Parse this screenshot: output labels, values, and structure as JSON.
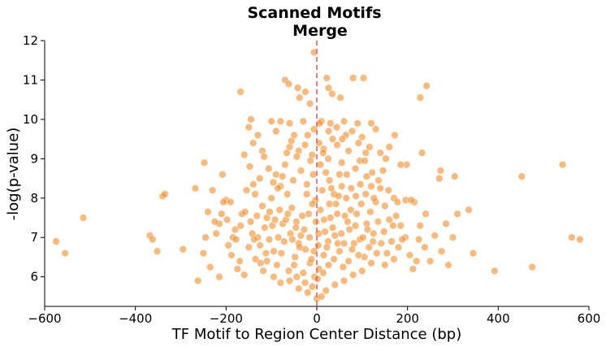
{
  "chart_data": {
    "type": "scatter",
    "title": "Scanned Motifs",
    "subtitle": "Merge",
    "xlabel": "TF Motif to Region Center Distance (bp)",
    "ylabel": "-log(p-value)",
    "xlim": [
      -600,
      600
    ],
    "ylim": [
      5.2,
      12
    ],
    "xticks": [
      -600,
      -400,
      -200,
      0,
      200,
      400,
      600
    ],
    "yticks": [
      6,
      7,
      8,
      9,
      10,
      11,
      12
    ],
    "xtick_labels": [
      "−600",
      "−400",
      "−200",
      "0",
      "200",
      "400",
      "600"
    ],
    "ytick_labels": [
      "6",
      "7",
      "8",
      "9",
      "10",
      "11",
      "12"
    ],
    "grid": false,
    "legend": "none",
    "reference_line": {
      "orientation": "vertical",
      "x": 0,
      "color": "#e8645a",
      "style": "dashed"
    },
    "point_color": "#f28e2b",
    "series": [
      {
        "points": [
          [
            -575,
            6.9
          ],
          [
            -555,
            6.6
          ],
          [
            -515,
            7.5
          ],
          [
            -368,
            7.05
          ],
          [
            -362,
            6.95
          ],
          [
            -352,
            6.65
          ],
          [
            -340,
            8.05
          ],
          [
            -335,
            8.1
          ],
          [
            -295,
            6.7
          ],
          [
            -268,
            8.25
          ],
          [
            -262,
            5.9
          ],
          [
            -248,
            8.9
          ],
          [
            -208,
            8.6
          ],
          [
            -168,
            10.7
          ],
          [
            -6,
            11.7
          ],
          [
            -70,
            11.0
          ],
          [
            -62,
            10.9
          ],
          [
            -42,
            10.8
          ],
          [
            -25,
            10.7
          ],
          [
            -15,
            10.4
          ],
          [
            -38,
            10.55
          ],
          [
            22,
            11.05
          ],
          [
            26,
            10.8
          ],
          [
            34,
            10.65
          ],
          [
            52,
            10.55
          ],
          [
            80,
            11.05
          ],
          [
            103,
            11.05
          ],
          [
            242,
            10.85
          ],
          [
            228,
            10.55
          ],
          [
            232,
            9.15
          ],
          [
            273,
            8.7
          ],
          [
            304,
            8.55
          ],
          [
            270,
            8.5
          ],
          [
            335,
            7.7
          ],
          [
            345,
            6.6
          ],
          [
            392,
            6.15
          ],
          [
            452,
            8.55
          ],
          [
            475,
            6.25
          ],
          [
            542,
            8.85
          ],
          [
            562,
            7.0
          ],
          [
            580,
            6.95
          ],
          [
            290,
            6.3
          ],
          [
            275,
            6.65
          ],
          [
            250,
            6.4
          ],
          [
            220,
            6.4
          ],
          [
            205,
            6.55
          ],
          [
            310,
            7.6
          ],
          [
            300,
            7.0
          ],
          [
            260,
            7.05
          ],
          [
            285,
            7.35
          ],
          [
            240,
            7.6
          ],
          [
            228,
            7.3
          ],
          [
            215,
            7.9
          ],
          [
            198,
            8.85
          ],
          [
            185,
            8.85
          ],
          [
            172,
            9.6
          ],
          [
            160,
            9.3
          ],
          [
            -150,
            9.8
          ],
          [
            -140,
            9.4
          ],
          [
            -145,
            10.0
          ],
          [
            -130,
            9.6
          ],
          [
            -120,
            9.2
          ],
          [
            -100,
            9.95
          ],
          [
            -90,
            9.7
          ],
          [
            -80,
            9.95
          ],
          [
            -60,
            9.9
          ],
          [
            -50,
            9.6
          ],
          [
            -30,
            9.95
          ],
          [
            10,
            9.95
          ],
          [
            30,
            9.9
          ],
          [
            60,
            9.95
          ],
          [
            90,
            9.9
          ],
          [
            120,
            9.9
          ],
          [
            130,
            9.75
          ],
          [
            100,
            9.55
          ],
          [
            140,
            9.15
          ],
          [
            -200,
            7.95
          ],
          [
            -210,
            7.6
          ],
          [
            -215,
            7.35
          ],
          [
            -225,
            7.4
          ],
          [
            -190,
            7.9
          ],
          [
            -180,
            7.2
          ],
          [
            -170,
            6.4
          ],
          [
            -160,
            6.05
          ],
          [
            -175,
            6.2
          ],
          [
            -195,
            6.8
          ],
          [
            -185,
            7.0
          ],
          [
            -165,
            7.6
          ],
          [
            -155,
            8.2
          ],
          [
            -140,
            8.35
          ],
          [
            -130,
            7.0
          ],
          [
            -125,
            6.8
          ],
          [
            -110,
            6.4
          ],
          [
            -95,
            6.0
          ],
          [
            -80,
            5.85
          ],
          [
            -60,
            5.9
          ],
          [
            -40,
            5.7
          ],
          [
            -20,
            5.6
          ],
          [
            0,
            5.45
          ],
          [
            10,
            5.5
          ],
          [
            20,
            5.65
          ],
          [
            40,
            5.8
          ],
          [
            60,
            5.9
          ],
          [
            80,
            6.05
          ],
          [
            100,
            6.15
          ],
          [
            120,
            6.35
          ],
          [
            150,
            6.3
          ],
          [
            170,
            6.45
          ],
          [
            160,
            7.45
          ],
          [
            150,
            7.8
          ],
          [
            140,
            8.25
          ],
          [
            170,
            8.0
          ],
          [
            175,
            7.55
          ],
          [
            185,
            7.3
          ],
          [
            195,
            7.0
          ],
          [
            180,
            6.75
          ],
          [
            165,
            6.9
          ],
          [
            155,
            6.6
          ],
          [
            -110,
            7.5
          ],
          [
            -100,
            8.0
          ],
          [
            -90,
            8.6
          ],
          [
            -80,
            8.3
          ],
          [
            -70,
            8.85
          ],
          [
            -60,
            9.3
          ],
          [
            -40,
            9.2
          ],
          [
            -20,
            9.6
          ],
          [
            -10,
            9.1
          ],
          [
            5,
            9.4
          ],
          [
            15,
            9.25
          ],
          [
            25,
            9.0
          ],
          [
            35,
            9.5
          ],
          [
            45,
            9.35
          ],
          [
            55,
            8.9
          ],
          [
            70,
            9.2
          ],
          [
            85,
            8.75
          ],
          [
            95,
            8.95
          ],
          [
            110,
            8.55
          ],
          [
            120,
            8.3
          ],
          [
            130,
            7.9
          ],
          [
            135,
            7.4
          ],
          [
            125,
            7.1
          ],
          [
            115,
            6.75
          ],
          [
            105,
            6.5
          ],
          [
            95,
            6.95
          ],
          [
            85,
            7.3
          ],
          [
            75,
            7.7
          ],
          [
            65,
            8.0
          ],
          [
            55,
            8.3
          ],
          [
            45,
            7.6
          ],
          [
            35,
            7.25
          ],
          [
            25,
            6.9
          ],
          [
            15,
            6.55
          ],
          [
            5,
            6.2
          ],
          [
            -5,
            6.0
          ],
          [
            -15,
            6.35
          ],
          [
            -25,
            6.7
          ],
          [
            -35,
            7.05
          ],
          [
            -45,
            7.4
          ],
          [
            -55,
            7.75
          ],
          [
            -65,
            8.1
          ],
          [
            -75,
            7.35
          ],
          [
            -85,
            7.0
          ],
          [
            -95,
            6.65
          ],
          [
            -105,
            6.95
          ],
          [
            -115,
            7.25
          ],
          [
            -120,
            7.8
          ],
          [
            -50,
            6.3
          ],
          [
            -30,
            6.1
          ],
          [
            -12,
            6.45
          ],
          [
            3,
            6.8
          ],
          [
            18,
            7.15
          ],
          [
            30,
            7.5
          ],
          [
            42,
            7.85
          ],
          [
            50,
            8.6
          ],
          [
            38,
            8.1
          ],
          [
            28,
            8.45
          ],
          [
            12,
            8.2
          ],
          [
            -3,
            7.95
          ],
          [
            -18,
            7.6
          ],
          [
            -28,
            7.2
          ],
          [
            -40,
            6.85
          ],
          [
            -48,
            6.5
          ],
          [
            -58,
            7.1
          ],
          [
            -68,
            7.45
          ],
          [
            -78,
            6.6
          ],
          [
            -88,
            6.3
          ],
          [
            -72,
            6.9
          ],
          [
            -52,
            8.45
          ],
          [
            -35,
            8.7
          ],
          [
            -22,
            8.35
          ],
          [
            -8,
            8.6
          ],
          [
            8,
            8.85
          ],
          [
            20,
            8.65
          ],
          [
            32,
            8.25
          ],
          [
            48,
            8.05
          ],
          [
            62,
            7.55
          ],
          [
            72,
            7.2
          ],
          [
            82,
            6.85
          ],
          [
            92,
            6.55
          ],
          [
            102,
            7.0
          ],
          [
            110,
            7.35
          ],
          [
            118,
            7.65
          ],
          [
            -132,
            7.55
          ],
          [
            -142,
            7.1
          ],
          [
            -150,
            6.75
          ],
          [
            -135,
            6.45
          ],
          [
            -118,
            6.15
          ],
          [
            -98,
            7.3
          ],
          [
            -62,
            6.15
          ],
          [
            -44,
            6.0
          ],
          [
            -26,
            5.85
          ],
          [
            -10,
            5.75
          ],
          [
            2,
            5.95
          ],
          [
            14,
            6.1
          ],
          [
            26,
            6.3
          ],
          [
            38,
            6.45
          ],
          [
            50,
            6.65
          ],
          [
            58,
            6.25
          ],
          [
            70,
            6.4
          ],
          [
            78,
            6.7
          ],
          [
            88,
            7.6
          ],
          [
            98,
            7.85
          ],
          [
            108,
            8.1
          ],
          [
            122,
            8.65
          ],
          [
            108,
            9.15
          ],
          [
            92,
            9.4
          ],
          [
            78,
            9.7
          ],
          [
            64,
            9.6
          ],
          [
            -2,
            7.4
          ],
          [
            4,
            7.1
          ],
          [
            -6,
            6.65
          ],
          [
            8,
            7.7
          ],
          [
            -10,
            7.85
          ],
          [
            16,
            7.45
          ],
          [
            -16,
            7.0
          ],
          [
            22,
            6.75
          ],
          [
            -22,
            8.1
          ],
          [
            28,
            7.85
          ],
          [
            -32,
            7.55
          ],
          [
            40,
            7.05
          ],
          [
            -38,
            6.75
          ],
          [
            46,
            6.85
          ],
          [
            -46,
            7.25
          ],
          [
            54,
            7.1
          ],
          [
            -54,
            6.95
          ],
          [
            60,
            6.85
          ],
          [
            -64,
            7.6
          ],
          [
            68,
            7.4
          ],
          [
            -82,
            7.7
          ],
          [
            -92,
            7.45
          ],
          [
            -104,
            7.65
          ],
          [
            112,
            7.2
          ],
          [
            -112,
            6.6
          ],
          [
            124,
            6.9
          ],
          [
            -124,
            6.35
          ],
          [
            132,
            6.6
          ],
          [
            -138,
            6.95
          ],
          [
            142,
            6.85
          ],
          [
            -146,
            7.4
          ],
          [
            148,
            7.15
          ],
          [
            -158,
            7.65
          ],
          [
            158,
            8.2
          ],
          [
            -168,
            7.3
          ],
          [
            168,
            7.3
          ],
          [
            -178,
            6.95
          ],
          [
            178,
            7.9
          ],
          [
            -188,
            6.55
          ],
          [
            188,
            6.95
          ],
          [
            -198,
            7.45
          ],
          [
            196,
            7.95
          ],
          [
            -206,
            7.9
          ],
          [
            208,
            7.95
          ],
          [
            -230,
            8.2
          ],
          [
            -240,
            7.65
          ],
          [
            -222,
            7.1
          ],
          [
            -245,
            7.0
          ],
          [
            -250,
            6.6
          ],
          [
            -235,
            6.25
          ],
          [
            -215,
            6.0
          ],
          [
            212,
            6.2
          ],
          [
            225,
            6.95
          ],
          [
            238,
            6.75
          ],
          [
            -6,
            9.75
          ],
          [
            6,
            9.9
          ],
          [
            -14,
            8.95
          ],
          [
            14,
            9.15
          ],
          [
            -26,
            9.35
          ],
          [
            26,
            9.7
          ],
          [
            -44,
            9.05
          ],
          [
            44,
            9.8
          ],
          [
            -56,
            9.45
          ],
          [
            56,
            9.5
          ],
          [
            -66,
            9.15
          ],
          [
            66,
            8.6
          ],
          [
            -76,
            8.55
          ],
          [
            76,
            8.25
          ],
          [
            -86,
            8.25
          ],
          [
            86,
            8.05
          ],
          [
            -96,
            8.4
          ],
          [
            96,
            8.35
          ],
          [
            -106,
            8.75
          ],
          [
            106,
            8.95
          ],
          [
            -116,
            9.05
          ],
          [
            116,
            9.3
          ],
          [
            -126,
            8.5
          ],
          [
            126,
            8.0
          ],
          [
            -136,
            8.1
          ],
          [
            136,
            8.45
          ],
          [
            -148,
            8.8
          ],
          [
            146,
            8.7
          ],
          [
            -160,
            9.1
          ],
          [
            152,
            9.0
          ]
        ]
      }
    ]
  }
}
